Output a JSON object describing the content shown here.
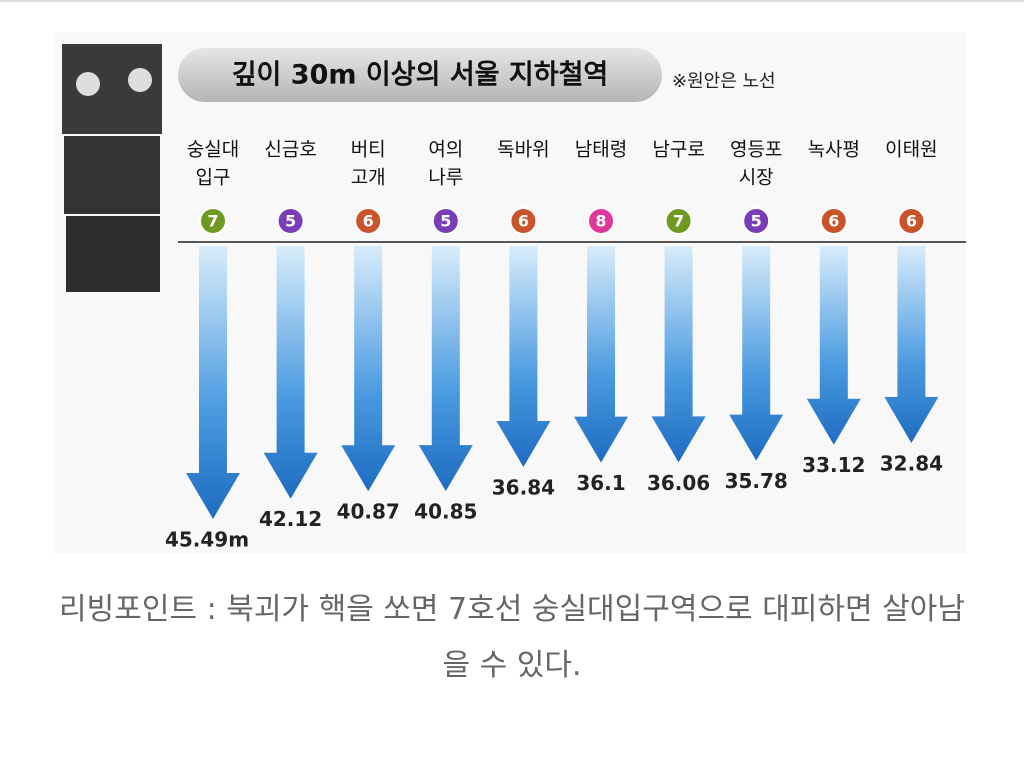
{
  "chart_data": {
    "type": "arrow-depth",
    "title": "깊이 30m 이상의 서울 지하철역",
    "subtitle": "※원안은 노선",
    "categories": [
      [
        "숭실대",
        "입구"
      ],
      [
        "신금호"
      ],
      [
        "버티",
        "고개"
      ],
      [
        "여의",
        "나루"
      ],
      [
        "독바위"
      ],
      [
        "남태령"
      ],
      [
        "남구로"
      ],
      [
        "영등포",
        "시장"
      ],
      [
        "녹사평"
      ],
      [
        "이태원"
      ]
    ],
    "lines": [
      7,
      5,
      6,
      5,
      6,
      8,
      7,
      5,
      6,
      6
    ],
    "line_colors": {
      "5": "#7a3db8",
      "6": "#c9532b",
      "7": "#6f9a22",
      "8": "#e0389a"
    },
    "values": [
      45.49,
      42.12,
      40.87,
      40.85,
      36.84,
      36.1,
      36.06,
      35.78,
      33.12,
      32.84
    ],
    "value_labels": [
      "45.49m",
      "42.12",
      "40.87",
      "40.85",
      "36.84",
      "36.1",
      "36.06",
      "35.78",
      "33.12",
      "32.84"
    ],
    "color": "#2a7fd0"
  },
  "caption": "리빙포인트 : 북괴가 핵을 쏘면 7호선 숭실대입구역으로 대피하면 살아남을 수 있다."
}
